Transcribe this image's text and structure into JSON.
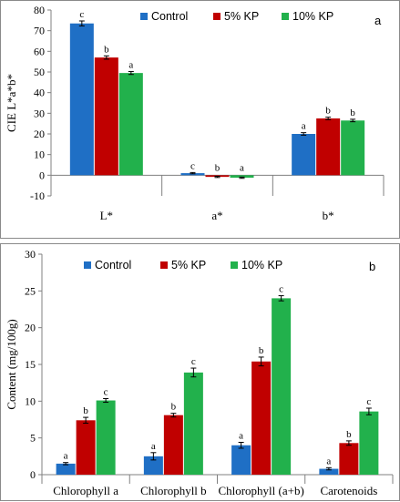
{
  "chart_data": [
    {
      "type": "bar",
      "panel_label": "a",
      "ylabel": "CIE L*a*b*",
      "xlabel": "",
      "ylim": [
        -10,
        80
      ],
      "yticks": [
        -10,
        0,
        10,
        20,
        30,
        40,
        50,
        60,
        70,
        80
      ],
      "categories": [
        "L*",
        "a*",
        "b*"
      ],
      "legend": "top-center",
      "grid": false,
      "series": [
        {
          "name": "Control",
          "color": "#1f6fc5",
          "values": [
            73.5,
            1.0,
            20.0
          ],
          "errors": [
            1.2,
            0.3,
            0.6
          ],
          "letters": [
            "c",
            "c",
            "a"
          ]
        },
        {
          "name": "5% KP",
          "color": "#c00000",
          "values": [
            57.0,
            -0.8,
            27.5
          ],
          "errors": [
            0.8,
            0.3,
            0.6
          ],
          "letters": [
            "b",
            "b",
            "b"
          ]
        },
        {
          "name": "10% KP",
          "color": "#22b14c",
          "values": [
            49.5,
            -1.2,
            26.5
          ],
          "errors": [
            0.7,
            0.3,
            0.6
          ],
          "letters": [
            "a",
            "a",
            "b"
          ]
        }
      ]
    },
    {
      "type": "bar",
      "panel_label": "b",
      "ylabel": "Content (mg/100g)",
      "xlabel": "",
      "ylim": [
        0,
        30
      ],
      "yticks": [
        0,
        5,
        10,
        15,
        20,
        25,
        30
      ],
      "categories": [
        "Chlorophyll a",
        "Chlorophyll b",
        "Chlorophyll (a+b)",
        "Carotenoids"
      ],
      "legend": "top-left",
      "grid": false,
      "series": [
        {
          "name": "Control",
          "color": "#1f6fc5",
          "values": [
            1.5,
            2.5,
            4.0,
            0.8
          ],
          "errors": [
            0.15,
            0.5,
            0.4,
            0.15
          ],
          "letters": [
            "a",
            "a",
            "a",
            "a"
          ]
        },
        {
          "name": "5% KP",
          "color": "#c00000",
          "values": [
            7.4,
            8.1,
            15.4,
            4.3
          ],
          "errors": [
            0.4,
            0.25,
            0.6,
            0.3
          ],
          "letters": [
            "b",
            "b",
            "b",
            "b"
          ]
        },
        {
          "name": "10% KP",
          "color": "#22b14c",
          "values": [
            10.1,
            13.9,
            24.0,
            8.6
          ],
          "errors": [
            0.25,
            0.6,
            0.35,
            0.45
          ],
          "letters": [
            "c",
            "c",
            "c",
            "c"
          ]
        }
      ]
    }
  ]
}
